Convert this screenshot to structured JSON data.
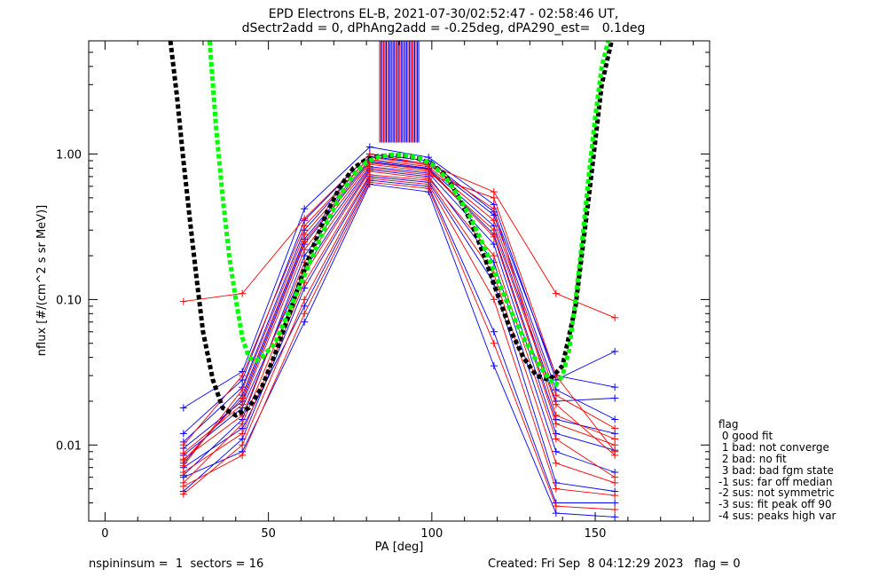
{
  "title_line1": "EPD Electrons EL-B, 2021-07-30/02:52:47 - 02:58:46 UT,",
  "title_line2": "dSectr2add = 0, dPhAng2add = -0.25deg, dPA290_est=   0.1deg",
  "footer_left": "nspininsum =  1  sectors = 16",
  "footer_right": "Created: Fri Sep  8 04:12:29 2023   flag = 0",
  "legend_title": "flag",
  "legend_items": [
    " 0 good fit",
    " 1 bad: not converge",
    " 2 bad: no fit",
    " 3 bad: bad fgm state",
    "-1 sus: far off median",
    "-2 sus: not symmetric",
    "-3 sus: fit peak off 90",
    "-4 sus: peaks high var"
  ],
  "colors": {
    "series_blue": "#0000ff",
    "series_red": "#ff0000",
    "black_fit": "#000000",
    "green_fit": "#00ff00"
  },
  "chart_data": {
    "type": "line",
    "xlabel": "PA [deg]",
    "ylabel": "nflux [#/(cm^2 s sr MeV)]",
    "x_ticks": [
      "0",
      "50",
      "100",
      "150"
    ],
    "y_ticks": [
      "0.01",
      "0.10",
      "1.00"
    ],
    "xlim": [
      -5,
      185
    ],
    "ylim": [
      0.003,
      6
    ],
    "yscale": "log",
    "grid": false,
    "pa_bins": [
      24,
      42,
      61,
      81,
      99,
      119,
      138,
      156
    ],
    "series": [
      {
        "color": "blue",
        "values": [
          0.018,
          0.032,
          0.42,
          1.12,
          0.95,
          0.45,
          0.028,
          0.044
        ]
      },
      {
        "color": "blue",
        "values": [
          0.0075,
          0.022,
          0.26,
          0.9,
          0.8,
          0.32,
          0.02,
          0.021
        ]
      },
      {
        "color": "blue",
        "values": [
          0.0062,
          0.015,
          0.2,
          0.82,
          0.74,
          0.24,
          0.012,
          0.0092
        ]
      },
      {
        "color": "blue",
        "values": [
          0.0105,
          0.025,
          0.3,
          0.96,
          0.86,
          0.38,
          0.024,
          0.015
        ]
      },
      {
        "color": "blue",
        "values": [
          0.0085,
          0.018,
          0.16,
          0.78,
          0.7,
          0.18,
          0.009,
          0.0065
        ]
      },
      {
        "color": "blue",
        "values": [
          0.0048,
          0.011,
          0.12,
          0.7,
          0.64,
          0.13,
          0.0055,
          0.0048
        ]
      },
      {
        "color": "blue",
        "values": [
          0.0095,
          0.02,
          0.24,
          0.88,
          0.79,
          0.28,
          0.015,
          0.012
        ]
      },
      {
        "color": "blue",
        "values": [
          0.007,
          0.013,
          0.09,
          0.66,
          0.6,
          0.06,
          0.004,
          0.004
        ]
      },
      {
        "color": "blue",
        "values": [
          0.012,
          0.028,
          0.35,
          1.0,
          0.9,
          0.4,
          0.03,
          0.025
        ]
      },
      {
        "color": "blue",
        "values": [
          0.006,
          0.009,
          0.07,
          0.62,
          0.55,
          0.035,
          0.0034,
          0.0032
        ]
      },
      {
        "color": "red",
        "values": [
          0.097,
          0.11,
          0.36,
          1.0,
          0.85,
          0.55,
          0.11,
          0.075
        ]
      },
      {
        "color": "red",
        "values": [
          0.0088,
          0.019,
          0.22,
          0.85,
          0.76,
          0.3,
          0.019,
          0.0085
        ]
      },
      {
        "color": "red",
        "values": [
          0.0055,
          0.014,
          0.15,
          0.76,
          0.68,
          0.2,
          0.011,
          0.006
        ]
      },
      {
        "color": "red",
        "values": [
          0.0072,
          0.024,
          0.28,
          0.92,
          0.82,
          0.35,
          0.022,
          0.013
        ]
      },
      {
        "color": "red",
        "values": [
          0.0046,
          0.01,
          0.1,
          0.68,
          0.62,
          0.1,
          0.005,
          0.0045
        ]
      },
      {
        "color": "red",
        "values": [
          0.008,
          0.016,
          0.18,
          0.8,
          0.72,
          0.5,
          0.03,
          0.009
        ]
      },
      {
        "color": "red",
        "values": [
          0.0065,
          0.012,
          0.13,
          0.72,
          0.66,
          0.15,
          0.0075,
          0.0055
        ]
      },
      {
        "color": "red",
        "values": [
          0.01,
          0.03,
          0.32,
          0.95,
          0.84,
          0.42,
          0.016,
          0.011
        ]
      },
      {
        "color": "red",
        "values": [
          0.0052,
          0.0085,
          0.08,
          0.64,
          0.58,
          0.05,
          0.0038,
          0.0036
        ]
      },
      {
        "color": "red",
        "values": [
          0.0078,
          0.021,
          0.25,
          0.87,
          0.78,
          0.27,
          0.014,
          0.01
        ]
      }
    ],
    "fit_black": {
      "x": [
        20,
        22,
        24,
        26,
        28,
        30,
        33,
        36,
        40,
        44,
        48,
        52,
        56,
        60,
        64,
        68,
        72,
        76,
        80,
        84,
        88,
        92,
        96,
        100,
        104,
        108,
        112,
        116,
        120,
        124,
        128,
        132,
        136,
        140,
        144,
        148,
        152,
        155
      ],
      "y": [
        6.0,
        2.5,
        0.9,
        0.35,
        0.14,
        0.06,
        0.028,
        0.018,
        0.016,
        0.018,
        0.025,
        0.042,
        0.075,
        0.14,
        0.24,
        0.4,
        0.6,
        0.8,
        0.92,
        0.97,
        0.98,
        0.97,
        0.93,
        0.86,
        0.72,
        0.52,
        0.34,
        0.2,
        0.11,
        0.062,
        0.04,
        0.03,
        0.028,
        0.035,
        0.09,
        0.5,
        3.0,
        6.0
      ]
    },
    "fit_green": {
      "x": [
        32,
        34,
        36,
        38,
        40,
        42,
        44,
        46,
        48,
        52,
        56,
        60,
        64,
        68,
        72,
        76,
        80,
        84,
        88,
        92,
        96,
        100,
        104,
        108,
        112,
        116,
        120,
        124,
        128,
        132,
        136,
        138,
        140,
        142,
        144,
        146,
        148,
        150,
        152,
        154,
        155
      ],
      "y": [
        6.0,
        1.5,
        0.5,
        0.2,
        0.1,
        0.055,
        0.04,
        0.038,
        0.04,
        0.05,
        0.08,
        0.13,
        0.21,
        0.34,
        0.52,
        0.72,
        0.88,
        0.96,
        0.99,
        0.98,
        0.94,
        0.85,
        0.7,
        0.52,
        0.36,
        0.23,
        0.14,
        0.085,
        0.055,
        0.038,
        0.028,
        0.026,
        0.03,
        0.045,
        0.1,
        0.25,
        0.7,
        1.8,
        4.0,
        6.0,
        6.0
      ]
    },
    "vertical_lines": {
      "x_range": [
        84,
        96
      ],
      "y_range": [
        1.2,
        6.0
      ],
      "count": 30
    }
  }
}
